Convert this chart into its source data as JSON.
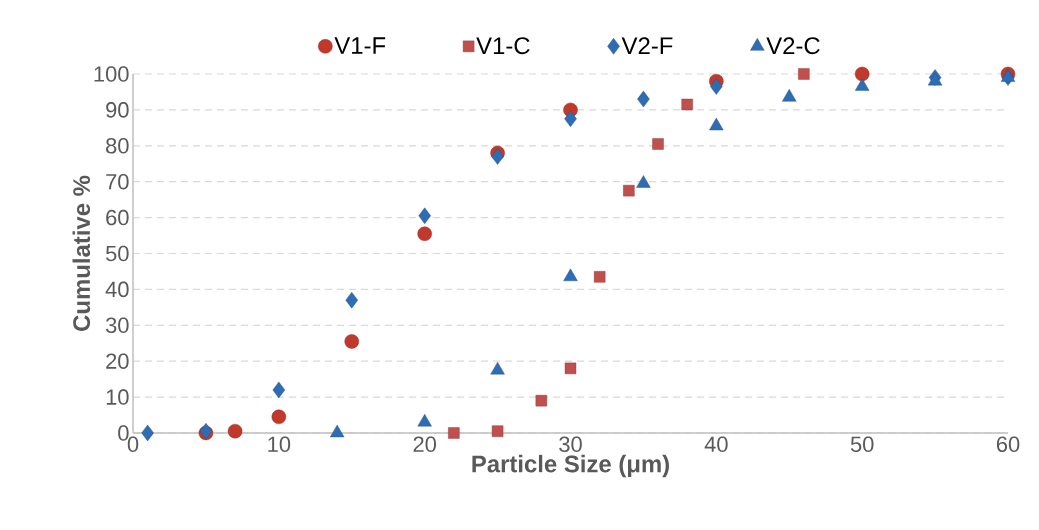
{
  "chart_data": {
    "type": "scatter",
    "xlabel": "Particle Size (μm)",
    "ylabel": "Cumulative %",
    "xlim": [
      0,
      60
    ],
    "ylim": [
      0,
      100
    ],
    "xticks": [
      0,
      10,
      20,
      30,
      40,
      50,
      60
    ],
    "yticks": [
      0,
      10,
      20,
      30,
      40,
      50,
      60,
      70,
      80,
      90,
      100
    ],
    "grid": "y",
    "legend": "top",
    "series": [
      {
        "name": "V1-F",
        "color": "#c0392b",
        "marker": "circle",
        "x": [
          5,
          7,
          10,
          15,
          20,
          25,
          30,
          40,
          50,
          60
        ],
        "values": [
          0,
          0.5,
          4.5,
          25.5,
          55.5,
          78,
          90,
          98,
          100,
          100
        ]
      },
      {
        "name": "V1-C",
        "color": "#c0504d",
        "marker": "square",
        "x": [
          22,
          25,
          28,
          30,
          32,
          34,
          36,
          38,
          46
        ],
        "values": [
          0,
          0.5,
          9,
          18,
          43.5,
          67.5,
          80.5,
          91.5,
          100
        ]
      },
      {
        "name": "V2-F",
        "color": "#2e6db4",
        "marker": "diamond",
        "x": [
          1,
          5,
          10,
          15,
          20,
          25,
          30,
          35,
          40,
          55,
          60
        ],
        "values": [
          0,
          0.5,
          12,
          37,
          60.5,
          77,
          87.5,
          93,
          96.5,
          99,
          99
        ]
      },
      {
        "name": "V2-C",
        "color": "#2e6db4",
        "marker": "triangle",
        "x": [
          14,
          20,
          25,
          30,
          35,
          40,
          45,
          50,
          55,
          60
        ],
        "values": [
          0,
          3,
          17.5,
          43.5,
          69.5,
          85.5,
          93.5,
          96.5,
          98,
          99
        ]
      }
    ]
  }
}
